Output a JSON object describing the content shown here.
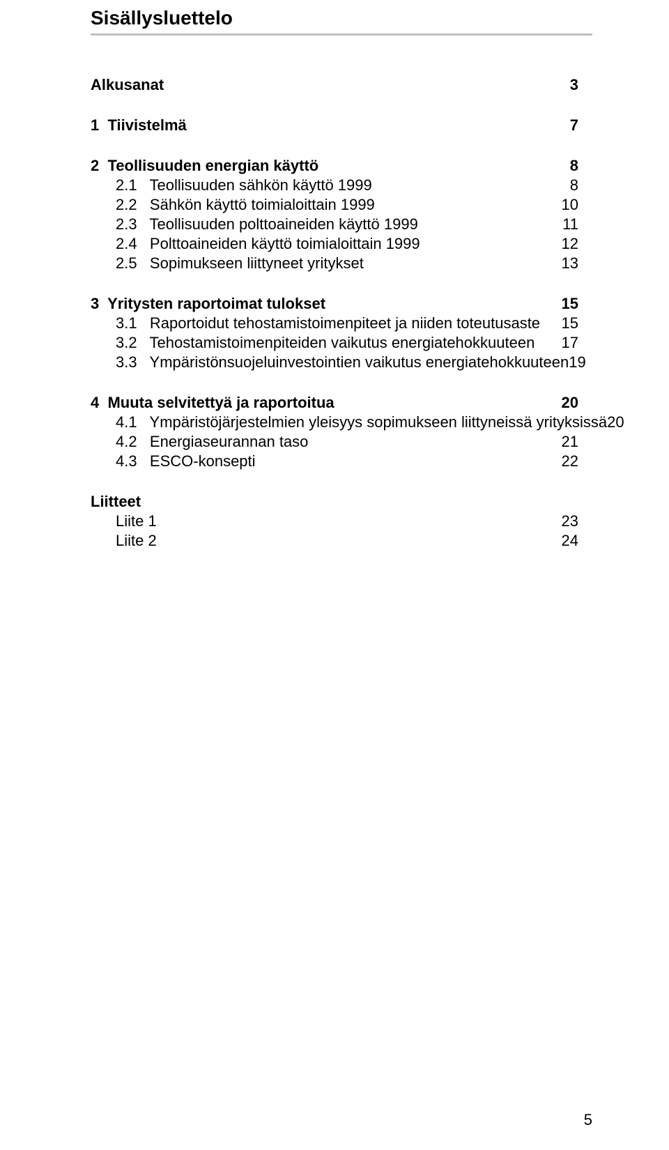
{
  "page": {
    "heading": "Sisällysluettelo",
    "pageNumber": "5",
    "colors": {
      "background": "#ffffff",
      "text": "#000000",
      "rule": "#bfbfbf"
    },
    "fonts": {
      "family": "Arial, Helvetica, sans-serif",
      "heading_size_pt": 21,
      "body_size_pt": 16
    }
  },
  "toc": {
    "sections": [
      {
        "label": "Alkusanat",
        "page": "3",
        "subs": []
      },
      {
        "label": "1  Tiivistelmä",
        "page": "7",
        "subs": []
      },
      {
        "label": "2  Teollisuuden energian käyttö",
        "page": "8",
        "subs": [
          {
            "label": "2.1   Teollisuuden sähkön käyttö 1999",
            "page": "8"
          },
          {
            "label": "2.2   Sähkön käyttö toimialoittain 1999",
            "page": "10"
          },
          {
            "label": "2.3   Teollisuuden polttoaineiden käyttö 1999",
            "page": "11"
          },
          {
            "label": "2.4   Polttoaineiden käyttö toimialoittain 1999",
            "page": "12"
          },
          {
            "label": "2.5   Sopimukseen liittyneet yritykset",
            "page": "13"
          }
        ]
      },
      {
        "label": "3  Yritysten raportoimat tulokset",
        "page": "15",
        "subs": [
          {
            "label": "3.1   Raportoidut tehostamistoimenpiteet ja niiden toteutusaste",
            "page": "15"
          },
          {
            "label": "3.2   Tehostamistoimenpiteiden vaikutus energiatehokkuuteen",
            "page": "17"
          },
          {
            "label": "3.3   Ympäristönsuojeluinvestointien vaikutus energiatehokkuuteen",
            "page": "19"
          }
        ]
      },
      {
        "label": "4  Muuta selvitettyä ja raportoitua",
        "page": "20",
        "subs": [
          {
            "label": "4.1   Ympäristöjärjestelmien yleisyys sopimukseen liittyneissä yrityksissä",
            "page": "20"
          },
          {
            "label": "4.2   Energiaseurannan taso",
            "page": "21"
          },
          {
            "label": "4.3   ESCO-konsepti",
            "page": "22"
          }
        ]
      },
      {
        "label": "Liitteet",
        "page": "",
        "subs": [
          {
            "label": "Liite 1",
            "page": "23"
          },
          {
            "label": "Liite 2",
            "page": "24"
          }
        ]
      }
    ]
  }
}
